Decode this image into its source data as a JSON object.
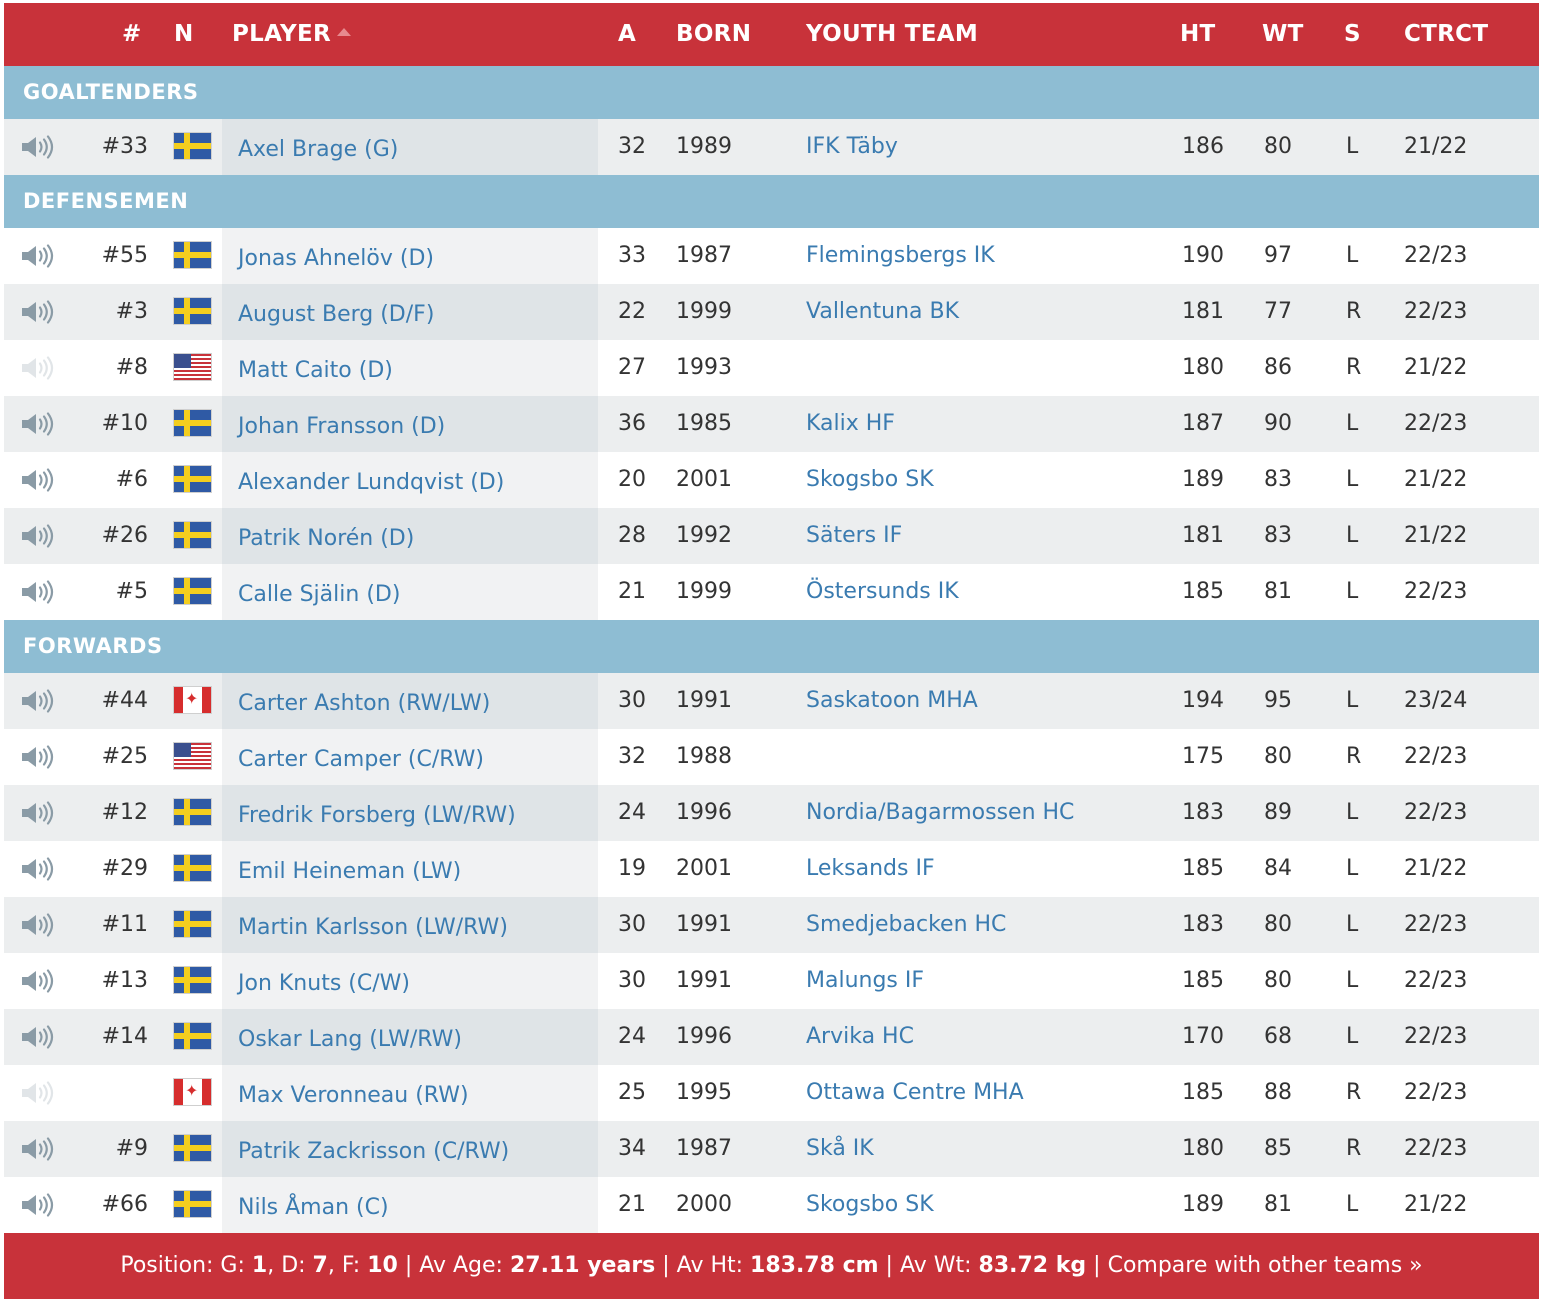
{
  "columns": {
    "number": "#",
    "nation": "N",
    "player": "PLAYER",
    "age": "A",
    "born": "BORN",
    "youth_team": "YOUTH TEAM",
    "height": "HT",
    "weight": "WT",
    "shoots": "S",
    "contract": "CTRCT"
  },
  "colors": {
    "header_bg": "#c8323a",
    "section_bg": "#8ebdd3",
    "link": "#3a7bb0"
  },
  "sections": [
    {
      "label": "GOALTENDERS",
      "players": [
        {
          "audio": true,
          "number": "#33",
          "flag": "se",
          "name": "Axel Brage (G)",
          "age": "32",
          "born": "1989",
          "youth_team": "IFK Täby",
          "ht": "186",
          "wt": "80",
          "s": "L",
          "contract": "21/22"
        }
      ]
    },
    {
      "label": "DEFENSEMEN",
      "players": [
        {
          "audio": true,
          "number": "#55",
          "flag": "se",
          "name": "Jonas Ahnelöv (D)",
          "age": "33",
          "born": "1987",
          "youth_team": "Flemingsbergs IK",
          "ht": "190",
          "wt": "97",
          "s": "L",
          "contract": "22/23"
        },
        {
          "audio": true,
          "number": "#3",
          "flag": "se",
          "name": "August Berg (D/F)",
          "age": "22",
          "born": "1999",
          "youth_team": "Vallentuna BK",
          "ht": "181",
          "wt": "77",
          "s": "R",
          "contract": "22/23"
        },
        {
          "audio": false,
          "number": "#8",
          "flag": "us",
          "name": "Matt Caito (D)",
          "age": "27",
          "born": "1993",
          "youth_team": "",
          "ht": "180",
          "wt": "86",
          "s": "R",
          "contract": "21/22"
        },
        {
          "audio": true,
          "number": "#10",
          "flag": "se",
          "name": "Johan Fransson (D)",
          "age": "36",
          "born": "1985",
          "youth_team": "Kalix HF",
          "ht": "187",
          "wt": "90",
          "s": "L",
          "contract": "22/23"
        },
        {
          "audio": true,
          "number": "#6",
          "flag": "se",
          "name": "Alexander Lundqvist (D)",
          "age": "20",
          "born": "2001",
          "youth_team": "Skogsbo SK",
          "ht": "189",
          "wt": "83",
          "s": "L",
          "contract": "21/22"
        },
        {
          "audio": true,
          "number": "#26",
          "flag": "se",
          "name": "Patrik Norén (D)",
          "age": "28",
          "born": "1992",
          "youth_team": "Säters IF",
          "ht": "181",
          "wt": "83",
          "s": "L",
          "contract": "21/22"
        },
        {
          "audio": true,
          "number": "#5",
          "flag": "se",
          "name": "Calle Själin (D)",
          "age": "21",
          "born": "1999",
          "youth_team": "Östersunds IK",
          "ht": "185",
          "wt": "81",
          "s": "L",
          "contract": "22/23"
        }
      ]
    },
    {
      "label": "FORWARDS",
      "players": [
        {
          "audio": true,
          "number": "#44",
          "flag": "ca",
          "name": "Carter Ashton (RW/LW)",
          "age": "30",
          "born": "1991",
          "youth_team": "Saskatoon MHA",
          "ht": "194",
          "wt": "95",
          "s": "L",
          "contract": "23/24"
        },
        {
          "audio": true,
          "number": "#25",
          "flag": "us",
          "name": "Carter Camper (C/RW)",
          "age": "32",
          "born": "1988",
          "youth_team": "",
          "ht": "175",
          "wt": "80",
          "s": "R",
          "contract": "22/23"
        },
        {
          "audio": true,
          "number": "#12",
          "flag": "se",
          "name": "Fredrik Forsberg (LW/RW)",
          "age": "24",
          "born": "1996",
          "youth_team": "Nordia/Bagarmossen HC",
          "ht": "183",
          "wt": "89",
          "s": "L",
          "contract": "22/23"
        },
        {
          "audio": true,
          "number": "#29",
          "flag": "se",
          "name": "Emil Heineman (LW)",
          "age": "19",
          "born": "2001",
          "youth_team": "Leksands IF",
          "ht": "185",
          "wt": "84",
          "s": "L",
          "contract": "21/22"
        },
        {
          "audio": true,
          "number": "#11",
          "flag": "se",
          "name": "Martin Karlsson (LW/RW)",
          "age": "30",
          "born": "1991",
          "youth_team": "Smedjebacken HC",
          "ht": "183",
          "wt": "80",
          "s": "L",
          "contract": "22/23"
        },
        {
          "audio": true,
          "number": "#13",
          "flag": "se",
          "name": "Jon Knuts (C/W)",
          "age": "30",
          "born": "1991",
          "youth_team": "Malungs IF",
          "ht": "185",
          "wt": "80",
          "s": "L",
          "contract": "22/23"
        },
        {
          "audio": true,
          "number": "#14",
          "flag": "se",
          "name": "Oskar Lang (LW/RW)",
          "age": "24",
          "born": "1996",
          "youth_team": "Arvika HC",
          "ht": "170",
          "wt": "68",
          "s": "L",
          "contract": "22/23"
        },
        {
          "audio": false,
          "number": "",
          "flag": "ca",
          "name": "Max Veronneau (RW)",
          "age": "25",
          "born": "1995",
          "youth_team": "Ottawa Centre MHA",
          "ht": "185",
          "wt": "88",
          "s": "R",
          "contract": "22/23"
        },
        {
          "audio": true,
          "number": "#9",
          "flag": "se",
          "name": "Patrik Zackrisson (C/RW)",
          "age": "34",
          "born": "1987",
          "youth_team": "Skå IK",
          "ht": "180",
          "wt": "85",
          "s": "R",
          "contract": "22/23"
        },
        {
          "audio": true,
          "number": "#66",
          "flag": "se",
          "name": "Nils Åman (C)",
          "age": "21",
          "born": "2000",
          "youth_team": "Skogsbo SK",
          "ht": "189",
          "wt": "81",
          "s": "L",
          "contract": "21/22"
        }
      ]
    }
  ],
  "footer": {
    "position_label": "Position: G: ",
    "g_count": "1",
    "d_label": ", D: ",
    "d_count": "7",
    "f_label": ", F: ",
    "f_count": "10",
    "sep1": " | Av Age: ",
    "avg_age": "27.11 years",
    "sep2": " | Av Ht: ",
    "avg_ht": "183.78 cm",
    "sep3": " | Av Wt: ",
    "avg_wt": "83.72 kg",
    "sep4": " | ",
    "compare_link": "Compare with other teams »"
  }
}
